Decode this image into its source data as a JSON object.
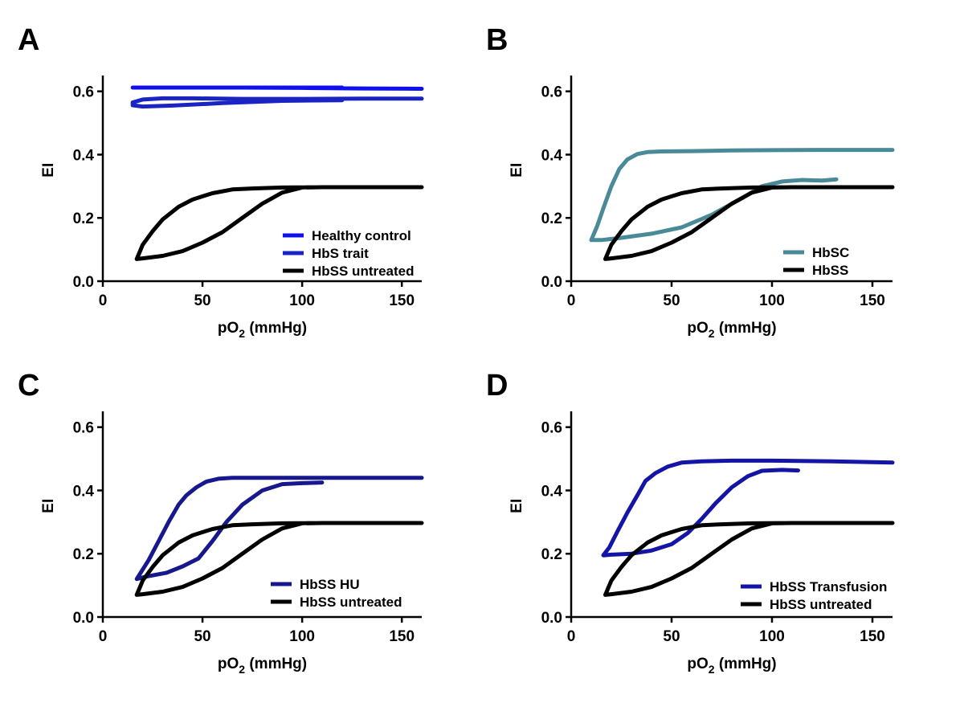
{
  "colors": {
    "healthy": "#1010ee",
    "trait": "#1a24c2",
    "black": "#000000",
    "hbsc": "#4a8a98",
    "hu": "#18188e",
    "transfusion": "#1414a6"
  },
  "chart_data": [
    {
      "panel": "A",
      "type": "line",
      "xlabel": "pO2 (mmHg)",
      "ylabel": "EI",
      "xlim": [
        0,
        160
      ],
      "ylim": [
        0,
        0.65
      ],
      "xticks": [
        0,
        50,
        100,
        150
      ],
      "yticks": [
        0.0,
        0.2,
        0.4,
        0.6
      ],
      "xtick_labels": [
        "0",
        "50",
        "100",
        "150"
      ],
      "ytick_labels": [
        "0.0",
        "0.2",
        "0.4",
        "0.6"
      ],
      "legend_position": "bottom-right",
      "series": [
        {
          "name": "Healthy control",
          "color_key": "healthy",
          "x": [
            160,
            130,
            100,
            70,
            40,
            20,
            15,
            15,
            25,
            60,
            100,
            120
          ],
          "y": [
            0.608,
            0.609,
            0.611,
            0.612,
            0.612,
            0.612,
            0.612,
            0.612,
            0.612,
            0.612,
            0.612,
            0.612
          ]
        },
        {
          "name": "HbS trait",
          "color_key": "trait",
          "x": [
            160,
            130,
            100,
            70,
            45,
            30,
            20,
            15,
            15,
            20,
            35,
            60,
            90,
            120
          ],
          "y": [
            0.577,
            0.577,
            0.576,
            0.576,
            0.578,
            0.578,
            0.574,
            0.565,
            0.556,
            0.552,
            0.555,
            0.563,
            0.57,
            0.572
          ]
        },
        {
          "name": "HbSS untreated",
          "color_key": "black",
          "x": [
            160,
            130,
            110,
            90,
            75,
            65,
            55,
            50,
            45,
            38,
            30,
            25,
            20,
            18,
            17,
            20,
            30,
            40,
            50,
            60,
            70,
            80,
            90,
            100,
            110
          ],
          "y": [
            0.297,
            0.297,
            0.297,
            0.296,
            0.293,
            0.29,
            0.278,
            0.268,
            0.258,
            0.235,
            0.195,
            0.158,
            0.115,
            0.085,
            0.07,
            0.072,
            0.08,
            0.095,
            0.122,
            0.155,
            0.2,
            0.245,
            0.28,
            0.296,
            0.297
          ]
        }
      ]
    },
    {
      "panel": "B",
      "type": "line",
      "xlabel": "pO2 (mmHg)",
      "ylabel": "EI",
      "xlim": [
        0,
        160
      ],
      "ylim": [
        0,
        0.65
      ],
      "xticks": [
        0,
        50,
        100,
        150
      ],
      "yticks": [
        0.0,
        0.2,
        0.4,
        0.6
      ],
      "xtick_labels": [
        "0",
        "50",
        "100",
        "150"
      ],
      "ytick_labels": [
        "0.0",
        "0.2",
        "0.4",
        "0.6"
      ],
      "legend_position": "bottom-right",
      "series": [
        {
          "name": "HbSC",
          "color_key": "hbsc",
          "x": [
            160,
            130,
            100,
            80,
            60,
            45,
            38,
            33,
            28,
            24,
            20,
            16,
            13,
            11,
            10,
            15,
            25,
            40,
            55,
            70,
            85,
            95,
            105,
            115,
            125,
            132
          ],
          "y": [
            0.415,
            0.415,
            0.414,
            0.413,
            0.411,
            0.41,
            0.408,
            0.402,
            0.385,
            0.355,
            0.3,
            0.23,
            0.175,
            0.145,
            0.13,
            0.13,
            0.137,
            0.15,
            0.17,
            0.21,
            0.262,
            0.3,
            0.315,
            0.32,
            0.318,
            0.322
          ]
        },
        {
          "name": "HbSS",
          "color_key": "black",
          "x": [
            160,
            130,
            110,
            90,
            75,
            65,
            55,
            50,
            45,
            38,
            30,
            25,
            20,
            18,
            17,
            20,
            30,
            40,
            50,
            60,
            70,
            80,
            90,
            100,
            110
          ],
          "y": [
            0.297,
            0.297,
            0.297,
            0.296,
            0.293,
            0.29,
            0.278,
            0.268,
            0.258,
            0.235,
            0.195,
            0.158,
            0.115,
            0.085,
            0.07,
            0.072,
            0.08,
            0.095,
            0.122,
            0.155,
            0.2,
            0.245,
            0.28,
            0.296,
            0.297
          ]
        }
      ]
    },
    {
      "panel": "C",
      "type": "line",
      "xlabel": "pO2 (mmHg)",
      "ylabel": "EI",
      "xlim": [
        0,
        160
      ],
      "ylim": [
        0,
        0.65
      ],
      "xticks": [
        0,
        50,
        100,
        150
      ],
      "yticks": [
        0.0,
        0.2,
        0.4,
        0.6
      ],
      "xtick_labels": [
        "0",
        "50",
        "100",
        "150"
      ],
      "ytick_labels": [
        "0.0",
        "0.2",
        "0.4",
        "0.6"
      ],
      "legend_position": "bottom-right",
      "series": [
        {
          "name": "HbSS HU",
          "color_key": "hu",
          "x": [
            160,
            130,
            100,
            80,
            65,
            58,
            52,
            47,
            42,
            38,
            33,
            28,
            23,
            19,
            17,
            22,
            32,
            40,
            48,
            55,
            62,
            70,
            80,
            90,
            100,
            110
          ],
          "y": [
            0.44,
            0.44,
            0.44,
            0.44,
            0.44,
            0.437,
            0.428,
            0.41,
            0.385,
            0.355,
            0.3,
            0.24,
            0.18,
            0.14,
            0.12,
            0.128,
            0.14,
            0.16,
            0.185,
            0.24,
            0.3,
            0.355,
            0.4,
            0.42,
            0.423,
            0.425
          ]
        },
        {
          "name": "HbSS untreated",
          "color_key": "black",
          "x": [
            160,
            130,
            110,
            90,
            75,
            65,
            55,
            50,
            45,
            38,
            30,
            25,
            20,
            18,
            17,
            20,
            30,
            40,
            50,
            60,
            70,
            80,
            90,
            100,
            110
          ],
          "y": [
            0.297,
            0.297,
            0.297,
            0.296,
            0.293,
            0.29,
            0.278,
            0.268,
            0.258,
            0.235,
            0.195,
            0.158,
            0.115,
            0.085,
            0.07,
            0.072,
            0.08,
            0.095,
            0.122,
            0.155,
            0.2,
            0.245,
            0.28,
            0.296,
            0.297
          ]
        }
      ]
    },
    {
      "panel": "D",
      "type": "line",
      "xlabel": "pO2 (mmHg)",
      "ylabel": "EI",
      "xlim": [
        0,
        160
      ],
      "ylim": [
        0,
        0.65
      ],
      "xticks": [
        0,
        50,
        100,
        150
      ],
      "yticks": [
        0.0,
        0.2,
        0.4,
        0.6
      ],
      "xtick_labels": [
        "0",
        "50",
        "100",
        "150"
      ],
      "ytick_labels": [
        "0.0",
        "0.2",
        "0.4",
        "0.6"
      ],
      "legend_position": "bottom-right",
      "series": [
        {
          "name": "HbSS Transfusion",
          "color_key": "transfusion",
          "x": [
            160,
            130,
            100,
            80,
            65,
            55,
            48,
            42,
            37,
            33,
            28,
            23,
            19,
            16,
            20,
            30,
            40,
            50,
            58,
            65,
            72,
            80,
            88,
            95,
            105,
            113
          ],
          "y": [
            0.488,
            0.492,
            0.494,
            0.494,
            0.492,
            0.488,
            0.475,
            0.455,
            0.43,
            0.385,
            0.33,
            0.27,
            0.22,
            0.195,
            0.197,
            0.2,
            0.21,
            0.23,
            0.265,
            0.31,
            0.36,
            0.41,
            0.445,
            0.462,
            0.465,
            0.463
          ]
        },
        {
          "name": "HbSS untreated",
          "color_key": "black",
          "x": [
            160,
            130,
            110,
            90,
            75,
            65,
            55,
            50,
            45,
            38,
            30,
            25,
            20,
            18,
            17,
            20,
            30,
            40,
            50,
            60,
            70,
            80,
            90,
            100,
            110
          ],
          "y": [
            0.297,
            0.297,
            0.297,
            0.296,
            0.293,
            0.29,
            0.278,
            0.268,
            0.258,
            0.235,
            0.195,
            0.158,
            0.115,
            0.085,
            0.07,
            0.072,
            0.08,
            0.095,
            0.122,
            0.155,
            0.2,
            0.245,
            0.28,
            0.296,
            0.297
          ]
        }
      ]
    }
  ]
}
